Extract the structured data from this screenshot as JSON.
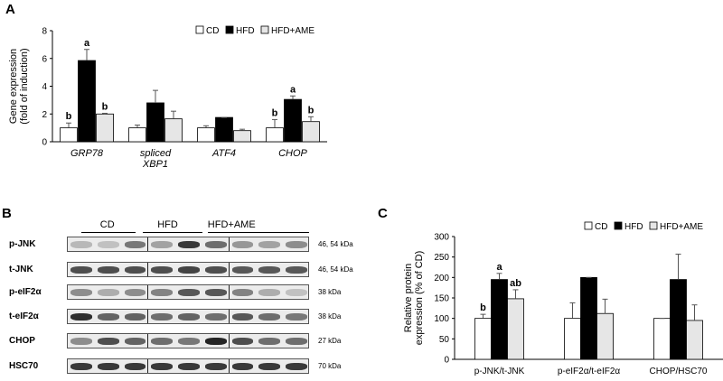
{
  "panels": {
    "a": "A",
    "b": "B",
    "c": "C"
  },
  "chart_data": [
    {
      "type": "bar",
      "panel": "A",
      "ylabel": "Gene expression\n(fold of induction)",
      "ylim": [
        0,
        8
      ],
      "yticks": [
        0,
        2,
        4,
        6,
        8
      ],
      "categories": [
        "GRP78",
        "spliced XBP1",
        "ATF4",
        "CHOP"
      ],
      "series": [
        {
          "name": "CD",
          "color": "#ffffff",
          "values": [
            1.0,
            1.0,
            1.0,
            1.0
          ],
          "errors": [
            0.35,
            0.2,
            0.15,
            0.6
          ],
          "labels": [
            "b",
            "",
            "",
            "b"
          ]
        },
        {
          "name": "HFD",
          "color": "#000000",
          "values": [
            5.85,
            2.8,
            1.75,
            3.05
          ],
          "errors": [
            0.8,
            0.9,
            0.0,
            0.25
          ],
          "labels": [
            "a",
            "",
            "",
            "a"
          ]
        },
        {
          "name": "HFD+AME",
          "color": "#e6e6e6",
          "values": [
            2.0,
            1.65,
            0.8,
            1.45
          ],
          "errors": [
            0.05,
            0.55,
            0.1,
            0.35
          ],
          "labels": [
            "b",
            "",
            "",
            "b"
          ]
        }
      ],
      "legend_position": "top-right"
    },
    {
      "type": "bar",
      "panel": "C",
      "ylabel": "Relative protein\nexpression (% of CD)",
      "ylim": [
        0,
        300
      ],
      "yticks": [
        0,
        50,
        100,
        150,
        200,
        250,
        300
      ],
      "categories": [
        "p-JNK/t-JNK",
        "p-eIF2α/t-eIF2α",
        "CHOP/HSC70"
      ],
      "series": [
        {
          "name": "CD",
          "color": "#ffffff",
          "values": [
            100,
            100,
            100
          ],
          "errors": [
            10,
            38,
            0
          ],
          "labels": [
            "b",
            "",
            ""
          ]
        },
        {
          "name": "HFD",
          "color": "#000000",
          "values": [
            195,
            200,
            195
          ],
          "errors": [
            15,
            0,
            62
          ],
          "labels": [
            "a",
            "",
            ""
          ]
        },
        {
          "name": "HFD+AME",
          "color": "#e6e6e6",
          "values": [
            148,
            112,
            95
          ],
          "errors": [
            22,
            35,
            38
          ],
          "labels": [
            "ab",
            "",
            ""
          ]
        }
      ],
      "legend_position": "top-right"
    }
  ],
  "blot": {
    "groups": [
      "CD",
      "HFD",
      "HFD+AME"
    ],
    "rows": [
      {
        "label": "p-JNK",
        "kda": "46, 54 kDa",
        "intensity": [
          0.25,
          0.2,
          0.55,
          0.35,
          0.85,
          0.6,
          0.4,
          0.35,
          0.45
        ]
      },
      {
        "label": "t-JNK",
        "kda": "46, 54 kDa",
        "intensity": [
          0.75,
          0.75,
          0.75,
          0.75,
          0.8,
          0.75,
          0.7,
          0.7,
          0.7
        ]
      },
      {
        "label": "p-eIF2α",
        "kda": "38 kDa",
        "intensity": [
          0.45,
          0.3,
          0.45,
          0.5,
          0.7,
          0.7,
          0.5,
          0.3,
          0.2
        ]
      },
      {
        "label": "t-eIF2α",
        "kda": "38 kDa",
        "intensity": [
          0.9,
          0.65,
          0.65,
          0.6,
          0.65,
          0.6,
          0.7,
          0.6,
          0.55
        ]
      },
      {
        "label": "CHOP",
        "kda": "27 kDa",
        "intensity": [
          0.45,
          0.75,
          0.65,
          0.6,
          0.55,
          0.95,
          0.75,
          0.6,
          0.6
        ]
      },
      {
        "label": "HSC70",
        "kda": "70 kDa",
        "intensity": [
          0.85,
          0.85,
          0.85,
          0.85,
          0.85,
          0.85,
          0.85,
          0.85,
          0.85
        ]
      }
    ]
  }
}
